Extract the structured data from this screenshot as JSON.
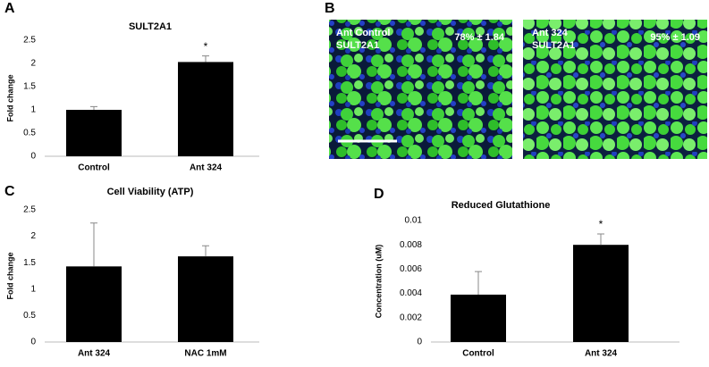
{
  "chart_data": [
    {
      "type": "bar",
      "panel_label": "A",
      "title": "SULT2A1",
      "ylabel": "Fold change",
      "categories": [
        "Control",
        "Ant 324"
      ],
      "values": [
        1.0,
        2.03
      ],
      "errors": [
        0.07,
        0.13
      ],
      "annotations": [
        null,
        "*"
      ],
      "color": "#000000",
      "ylim": [
        0,
        2.5
      ],
      "yticks": [
        0,
        0.5,
        1,
        1.5,
        2,
        2.5
      ]
    },
    {
      "type": "bar",
      "panel_label": "C",
      "title": "Cell Viability (ATP)",
      "ylabel": "Fold change",
      "categories": [
        "Ant 324",
        "NAC 1mM"
      ],
      "values": [
        1.43,
        1.62
      ],
      "errors": [
        0.82,
        0.2
      ],
      "annotations": [
        null,
        null
      ],
      "color": "#000000",
      "ylim": [
        0,
        2.5
      ],
      "yticks": [
        0,
        0.5,
        1,
        1.5,
        2,
        2.5
      ]
    },
    {
      "type": "bar",
      "panel_label": "D",
      "title": "Reduced Glutathione",
      "ylabel": "Concentration (uM)",
      "categories": [
        "Control",
        "Ant 324"
      ],
      "values": [
        0.0039,
        0.008
      ],
      "errors": [
        0.0019,
        0.0009
      ],
      "annotations": [
        null,
        "*"
      ],
      "color": "#000000",
      "ylim": [
        0,
        0.01
      ],
      "yticks": [
        0,
        0.002,
        0.004,
        0.006,
        0.008,
        0.01
      ]
    }
  ],
  "image_panel": {
    "panel_label": "B",
    "images": [
      {
        "lines": [
          "Ant Control",
          "SULT2A1"
        ],
        "stat": "78% ± 1.84"
      },
      {
        "lines": [
          "Ant 324",
          "SULT2A1"
        ],
        "stat": "95% ± 1.09"
      }
    ]
  }
}
